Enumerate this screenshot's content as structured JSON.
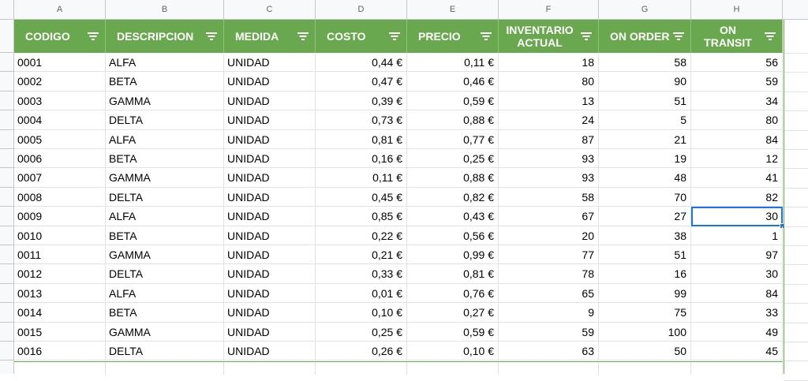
{
  "columns": [
    "A",
    "B",
    "C",
    "D",
    "E",
    "F",
    "G",
    "H"
  ],
  "headers": [
    {
      "label": "CODIGO"
    },
    {
      "label": "DESCRIPCION"
    },
    {
      "label": "MEDIDA"
    },
    {
      "label": "COSTO"
    },
    {
      "label": "PRECIO"
    },
    {
      "label": "INVENTARIO ACTUAL"
    },
    {
      "label": "ON ORDER"
    },
    {
      "label": "ON TRANSIT"
    }
  ],
  "rows": [
    [
      "0001",
      "ALFA",
      "UNIDAD",
      "0,44 €",
      "0,11 €",
      "18",
      "58",
      "56"
    ],
    [
      "0002",
      "BETA",
      "UNIDAD",
      "0,47 €",
      "0,46 €",
      "80",
      "90",
      "59"
    ],
    [
      "0003",
      "GAMMA",
      "UNIDAD",
      "0,39 €",
      "0,59 €",
      "13",
      "51",
      "34"
    ],
    [
      "0004",
      "DELTA",
      "UNIDAD",
      "0,73 €",
      "0,88 €",
      "24",
      "5",
      "80"
    ],
    [
      "0005",
      "ALFA",
      "UNIDAD",
      "0,81 €",
      "0,77 €",
      "87",
      "21",
      "84"
    ],
    [
      "0006",
      "BETA",
      "UNIDAD",
      "0,16 €",
      "0,25 €",
      "93",
      "19",
      "12"
    ],
    [
      "0007",
      "GAMMA",
      "UNIDAD",
      "0,11 €",
      "0,88 €",
      "93",
      "48",
      "41"
    ],
    [
      "0008",
      "DELTA",
      "UNIDAD",
      "0,45 €",
      "0,82 €",
      "58",
      "70",
      "82"
    ],
    [
      "0009",
      "ALFA",
      "UNIDAD",
      "0,85 €",
      "0,43 €",
      "67",
      "27",
      "30"
    ],
    [
      "0010",
      "BETA",
      "UNIDAD",
      "0,22 €",
      "0,56 €",
      "20",
      "38",
      "1"
    ],
    [
      "0011",
      "GAMMA",
      "UNIDAD",
      "0,21 €",
      "0,99 €",
      "77",
      "51",
      "97"
    ],
    [
      "0012",
      "DELTA",
      "UNIDAD",
      "0,33 €",
      "0,81 €",
      "78",
      "16",
      "30"
    ],
    [
      "0013",
      "ALFA",
      "UNIDAD",
      "0,01 €",
      "0,76 €",
      "65",
      "99",
      "84"
    ],
    [
      "0014",
      "BETA",
      "UNIDAD",
      "0,10 €",
      "0,27 €",
      "9",
      "75",
      "33"
    ],
    [
      "0015",
      "GAMMA",
      "UNIDAD",
      "0,25 €",
      "0,59 €",
      "59",
      "100",
      "49"
    ],
    [
      "0016",
      "DELTA",
      "UNIDAD",
      "0,26 €",
      "0,10 €",
      "63",
      "50",
      "45"
    ]
  ],
  "selected_cell": "H9",
  "colors": {
    "header_bg": "#6aa84f",
    "header_text": "#ffffff",
    "selection": "#1a73e8"
  }
}
